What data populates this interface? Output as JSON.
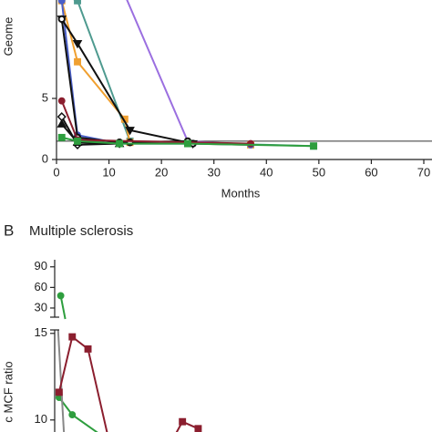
{
  "chart_data": [
    {
      "type": "line",
      "y_label": "Geome",
      "x_label": "Months",
      "xlim": [
        0,
        70
      ],
      "xticks": [
        0,
        10,
        20,
        30,
        40,
        50,
        60,
        70
      ],
      "ylim": [
        0,
        13
      ],
      "yticks": [
        0,
        5
      ],
      "reference_line": 1.5,
      "series": [
        {
          "color": "#9b6fe0",
          "marker": "none",
          "x": [
            13,
            25,
            37
          ],
          "values": [
            13.5,
            1.5,
            1.2
          ]
        },
        {
          "color": "#4e9a8f",
          "marker": "square",
          "x": [
            1,
            4,
            14,
            49
          ],
          "values": [
            13.5,
            13,
            1.5,
            1.1
          ]
        },
        {
          "color": "#f0a030",
          "marker": "square",
          "x": [
            1,
            4,
            13,
            14,
            37
          ],
          "values": [
            13,
            8,
            3.3,
            1.4,
            1.2
          ]
        },
        {
          "color": "#4a5fc8",
          "marker": "circle",
          "x": [
            1,
            4,
            12,
            26,
            37
          ],
          "values": [
            13,
            2,
            1.3,
            1.3,
            1.2
          ]
        },
        {
          "color": "#111111",
          "marker": "triangle-down",
          "x": [
            1,
            4,
            14,
            26
          ],
          "values": [
            11.5,
            9.5,
            2.4,
            1.3
          ]
        },
        {
          "color": "#111111",
          "marker": "open-circle",
          "x": [
            1,
            4,
            12,
            14,
            25,
            26
          ],
          "values": [
            11.5,
            1.8,
            1.4,
            1.4,
            1.5,
            1.3
          ]
        },
        {
          "color": "#8b1e2e",
          "marker": "circle",
          "x": [
            1,
            4,
            37
          ],
          "values": [
            4.8,
            1.6,
            1.3
          ]
        },
        {
          "color": "#111111",
          "marker": "diamond",
          "x": [
            1,
            4,
            12
          ],
          "values": [
            3.5,
            1.2,
            1.3
          ]
        },
        {
          "color": "#111111",
          "marker": "triangle",
          "x": [
            1,
            4,
            12
          ],
          "values": [
            2.9,
            1.4,
            1.3
          ]
        },
        {
          "color": "#2e9e3e",
          "marker": "square",
          "x": [
            1,
            4,
            12,
            25,
            49
          ],
          "values": [
            1.8,
            1.5,
            1.3,
            1.3,
            1.1
          ]
        }
      ]
    },
    {
      "type": "line",
      "panel": "B",
      "title": "Multiple sclerosis",
      "y_label": "c MCF ratio",
      "xlim": [
        0,
        70
      ],
      "ylim": [
        9.2,
        15.2
      ],
      "yticks": [
        10,
        15
      ],
      "y2lim": [
        20,
        95
      ],
      "y2ticks": [
        30,
        60,
        90
      ],
      "series": [
        {
          "color": "#2e9e3e",
          "marker": "circle",
          "axis": "y2",
          "x": [
            0.8
          ],
          "values": [
            48
          ]
        },
        {
          "color": "#2e9e3e",
          "marker": "circle",
          "x": [
            0.5,
            3,
            10
          ],
          "values": [
            11.3,
            10.3,
            8.8
          ]
        },
        {
          "color": "#888888",
          "marker": "none",
          "x": [
            0.3,
            1.5
          ],
          "values": [
            15.2,
            8.8
          ]
        },
        {
          "color": "#8b1e2e",
          "marker": "square",
          "x": [
            0.5,
            3,
            6,
            10
          ],
          "values": [
            11.6,
            14.8,
            14.1,
            8.8
          ]
        },
        {
          "color": "#8b1e2e",
          "marker": "square",
          "x": [
            22,
            24,
            27
          ],
          "values": [
            8.8,
            9.9,
            9.5
          ]
        }
      ]
    }
  ]
}
